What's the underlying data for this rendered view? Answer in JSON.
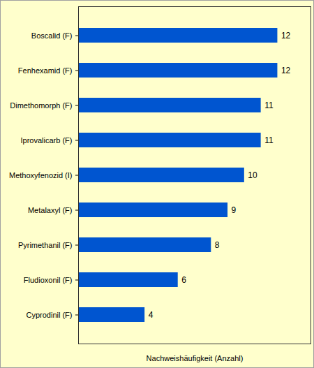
{
  "chart_data": {
    "type": "bar",
    "orientation": "horizontal",
    "categories": [
      "Boscalid (F)",
      "Fenhexamid (F)",
      "Dimethomorph (F)",
      "Iprovalicarb (F)",
      "Methoxyfenozid (I)",
      "Metalaxyl (F)",
      "Pyrimethanil (F)",
      "Fludioxonil (F)",
      "Cyprodinil (F)"
    ],
    "values": [
      12,
      12,
      11,
      11,
      10,
      9,
      8,
      6,
      4
    ],
    "color": "#0055d0",
    "xlabel": "Nachweishäufigkeit (Anzahl)",
    "xlim": [
      0,
      14
    ],
    "data_labels": true,
    "tick_labels": "y",
    "grid": false
  }
}
